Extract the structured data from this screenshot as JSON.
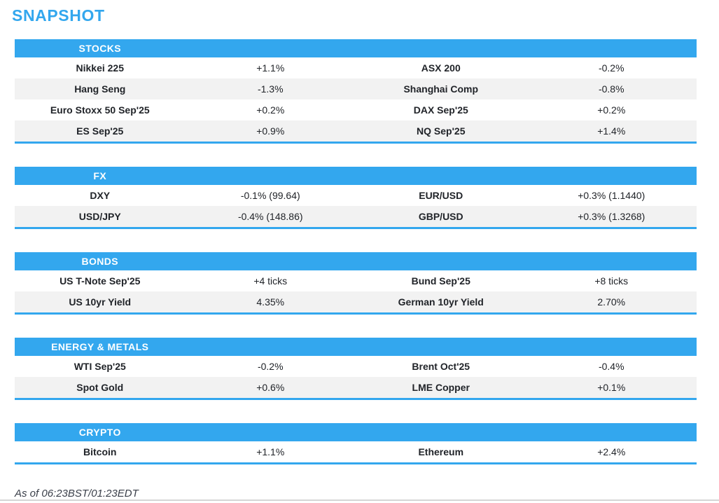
{
  "page": {
    "title": "SNAPSHOT",
    "footer": "As of 06:23BST/01:23EDT"
  },
  "colors": {
    "accent_blue": "#33A7EE",
    "row_alt": "#F2F2F2",
    "text_dark": "#212429",
    "footer_text": "#3A3F49",
    "bottom_line": "#D5D5D5"
  },
  "sections": [
    {
      "header": "STOCKS",
      "rows": [
        [
          "Nikkei 225",
          "+1.1%",
          "ASX 200",
          "-0.2%"
        ],
        [
          "Hang Seng",
          "-1.3%",
          "Shanghai Comp",
          "-0.8%"
        ],
        [
          "Euro Stoxx 50 Sep'25",
          "+0.2%",
          "DAX Sep'25",
          "+0.2%"
        ],
        [
          "ES Sep'25",
          "+0.9%",
          "NQ Sep'25",
          "+1.4%"
        ]
      ]
    },
    {
      "header": "FX",
      "rows": [
        [
          "DXY",
          "-0.1% (99.64)",
          "EUR/USD",
          "+0.3% (1.1440)"
        ],
        [
          "USD/JPY",
          "-0.4% (148.86)",
          "GBP/USD",
          "+0.3% (1.3268)"
        ]
      ]
    },
    {
      "header": "BONDS",
      "rows": [
        [
          "US T-Note Sep'25",
          "+4 ticks",
          "Bund Sep'25",
          "+8 ticks"
        ],
        [
          "US 10yr Yield",
          "4.35%",
          "German 10yr Yield",
          "2.70%"
        ]
      ]
    },
    {
      "header": "ENERGY & METALS",
      "rows": [
        [
          "WTI Sep'25",
          "-0.2%",
          "Brent Oct'25",
          "-0.4%"
        ],
        [
          "Spot Gold",
          "+0.6%",
          "LME Copper",
          "+0.1%"
        ]
      ]
    },
    {
      "header": "CRYPTO",
      "rows": [
        [
          "Bitcoin",
          "+1.1%",
          "Ethereum",
          "+2.4%"
        ]
      ]
    }
  ]
}
